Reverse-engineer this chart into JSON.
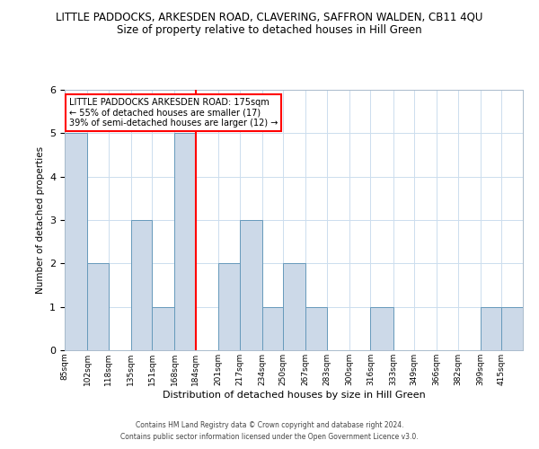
{
  "title": "LITTLE PADDOCKS, ARKESDEN ROAD, CLAVERING, SAFFRON WALDEN, CB11 4QU",
  "subtitle": "Size of property relative to detached houses in Hill Green",
  "xlabel": "Distribution of detached houses by size in Hill Green",
  "ylabel": "Number of detached properties",
  "bin_labels": [
    "85sqm",
    "102sqm",
    "118sqm",
    "135sqm",
    "151sqm",
    "168sqm",
    "184sqm",
    "201sqm",
    "217sqm",
    "234sqm",
    "250sqm",
    "267sqm",
    "283sqm",
    "300sqm",
    "316sqm",
    "333sqm",
    "349sqm",
    "366sqm",
    "382sqm",
    "399sqm",
    "415sqm"
  ],
  "bin_edges": [
    85,
    102,
    118,
    135,
    151,
    168,
    184,
    201,
    217,
    234,
    250,
    267,
    283,
    300,
    316,
    333,
    349,
    366,
    382,
    399,
    415,
    431
  ],
  "counts": [
    5,
    2,
    0,
    3,
    1,
    5,
    0,
    2,
    3,
    1,
    2,
    1,
    0,
    0,
    1,
    0,
    0,
    0,
    0,
    1,
    1
  ],
  "bar_color": "#ccd9e8",
  "bar_edge_color": "#6699bb",
  "red_line_x": 184,
  "annotation_title": "LITTLE PADDOCKS ARKESDEN ROAD: 175sqm",
  "annotation_line1": "← 55% of detached houses are smaller (17)",
  "annotation_line2": "39% of semi-detached houses are larger (12) →",
  "annotation_box_color": "white",
  "annotation_box_edge": "red",
  "ylim": [
    0,
    6
  ],
  "yticks": [
    0,
    1,
    2,
    3,
    4,
    5,
    6
  ],
  "footer1": "Contains HM Land Registry data © Crown copyright and database right 2024.",
  "footer2": "Contains public sector information licensed under the Open Government Licence v3.0.",
  "title_fontsize": 8.5,
  "subtitle_fontsize": 8.5,
  "background_color": "#ffffff",
  "grid_color": "#ccddee"
}
